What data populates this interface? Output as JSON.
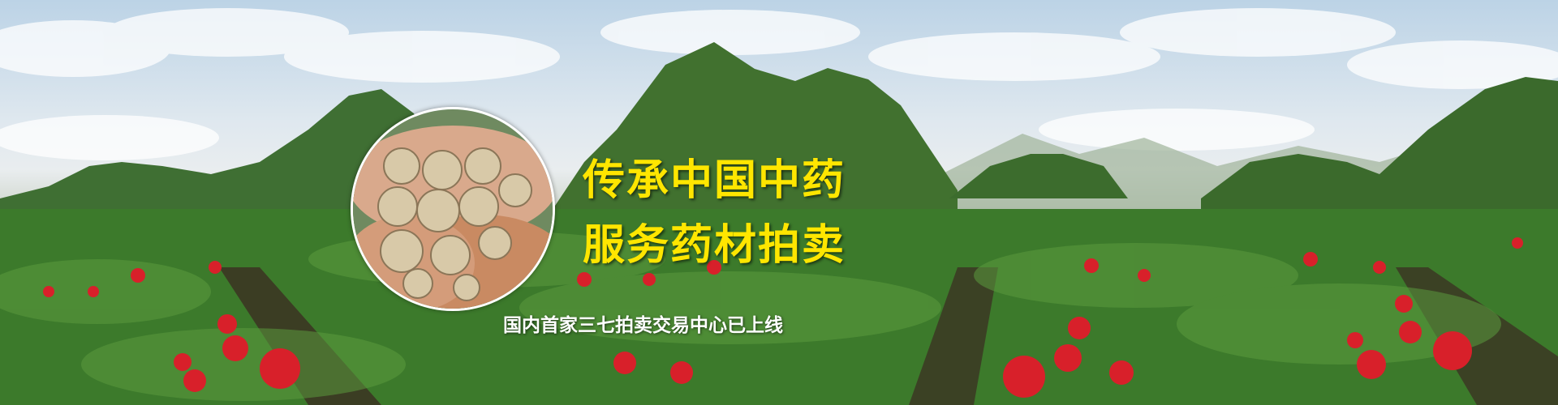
{
  "banner": {
    "headline_line1": "传承中国中药",
    "headline_line2": "服务药材拍卖",
    "subline": "国内首家三七拍卖交易中心已上线"
  },
  "colors": {
    "headline": "#ffe600",
    "subline": "#ffffff",
    "flower_red": "#d8202a",
    "foliage_green": "#3f7a2e"
  }
}
